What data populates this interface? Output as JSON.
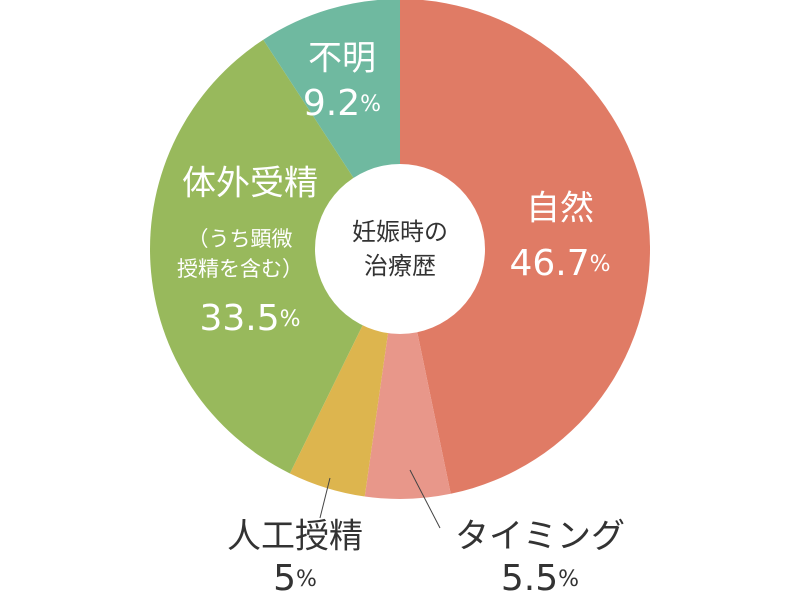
{
  "chart_data": {
    "type": "pie",
    "title": [
      "妊娠時の",
      "治療歴"
    ],
    "categories": [
      "自然",
      "タイミング",
      "人工授精",
      "体外受精",
      "不明"
    ],
    "values": [
      46.7,
      5.5,
      5,
      33.5,
      9.2
    ],
    "value_labels": [
      "46.7%",
      "5.5%",
      "5%",
      "33.5%",
      "9.2%"
    ],
    "colors": [
      "#e07b65",
      "#e8978a",
      "#ddb54e",
      "#98b95c",
      "#6fb9a0"
    ],
    "annotation": [
      "（うち顕微",
      "授精を含む）"
    ]
  }
}
